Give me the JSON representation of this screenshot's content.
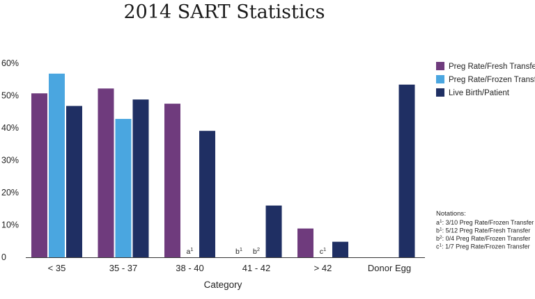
{
  "chart_data": {
    "type": "bar",
    "title": "2014 SART Statistics",
    "xlabel": "Category",
    "ylabel": "",
    "ylim": [
      0,
      60
    ],
    "yticks": [
      "0",
      "10%",
      "20%",
      "30%",
      "40%",
      "50%",
      "60%"
    ],
    "categories": [
      "< 35",
      "35 - 37",
      "38 - 40",
      "41 - 42",
      "> 42",
      "Donor Egg"
    ],
    "series": [
      {
        "name": "Preg Rate/Fresh Transfer",
        "color": "#6f3b7d",
        "values": [
          50.7,
          52.2,
          47.5,
          null,
          8.9,
          null
        ]
      },
      {
        "name": "Preg Rate/Frozen Transfer",
        "color": "#4aa6e0",
        "values": [
          56.8,
          42.8,
          null,
          null,
          null,
          null
        ]
      },
      {
        "name": "Live Birth/Patient",
        "color": "#1f2f63",
        "values": [
          46.8,
          48.8,
          39.1,
          16.0,
          4.8,
          53.4
        ]
      }
    ],
    "annotations": [
      {
        "category": "38 - 40",
        "series": "Preg Rate/Frozen Transfer",
        "base": "a",
        "sup": "1"
      },
      {
        "category": "41 - 42",
        "series": "Preg Rate/Fresh Transfer",
        "base": "b",
        "sup": "1"
      },
      {
        "category": "41 - 42",
        "series": "Preg Rate/Frozen Transfer",
        "base": "b",
        "sup": "2"
      },
      {
        "category": "> 42",
        "series": "Preg Rate/Frozen Transfer",
        "base": "c",
        "sup": "1"
      }
    ],
    "legend_placement": "top-right",
    "grid": false,
    "notations": {
      "title": "Notations:",
      "items": [
        {
          "base": "a",
          "sup": "1",
          "text": ": 3/10 Preg Rate/Frozen Transfer"
        },
        {
          "base": "b",
          "sup": "1",
          "text": ":  5/12 Preg Rate/Fresh Transfer"
        },
        {
          "base": "b",
          "sup": "2",
          "text": ": 0/4  Preg Rate/Frozen Transfer"
        },
        {
          "base": "c",
          "sup": "1",
          "text": ": 1/7 Preg Rate/Frozen Transfer"
        }
      ]
    }
  }
}
